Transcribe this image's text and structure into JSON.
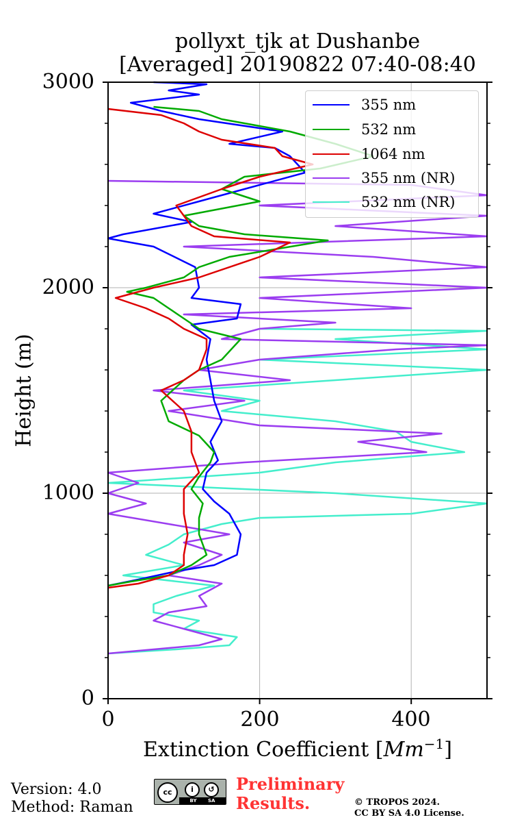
{
  "chart_data": {
    "type": "line",
    "title": [
      "pollyxt_tjk at Dushanbe",
      "[Averaged] 20190822 07:40-08:40"
    ],
    "xlabel": "Extinction Coefficient [",
    "xlabel_unit": "Mm",
    "xlabel_exp": "−1",
    "xlabel_close": "]",
    "ylabel": "Height (m)",
    "xlim": [
      0,
      500
    ],
    "ylim": [
      0,
      3000
    ],
    "x_ticks": [
      "0",
      "200",
      "400"
    ],
    "y_ticks": [
      "0",
      "1000",
      "2000",
      "3000"
    ],
    "grid": true,
    "legend_position": "top-right",
    "series": [
      {
        "name": "355 nm",
        "color": "#0000ff",
        "points": [
          [
            0,
            550
          ],
          [
            40,
            580
          ],
          [
            90,
            620
          ],
          [
            140,
            650
          ],
          [
            170,
            700
          ],
          [
            175,
            800
          ],
          [
            160,
            900
          ],
          [
            140,
            960
          ],
          [
            125,
            1020
          ],
          [
            130,
            1100
          ],
          [
            145,
            1160
          ],
          [
            135,
            1250
          ],
          [
            150,
            1350
          ],
          [
            140,
            1450
          ],
          [
            135,
            1550
          ],
          [
            130,
            1650
          ],
          [
            135,
            1750
          ],
          [
            110,
            1820
          ],
          [
            170,
            1850
          ],
          [
            175,
            1920
          ],
          [
            110,
            1950
          ],
          [
            120,
            2000
          ],
          [
            115,
            2100
          ],
          [
            60,
            2200
          ],
          [
            0,
            2240
          ],
          [
            20,
            2260
          ],
          [
            110,
            2320
          ],
          [
            60,
            2360
          ],
          [
            120,
            2420
          ],
          [
            180,
            2480
          ],
          [
            260,
            2560
          ],
          [
            240,
            2640
          ],
          [
            220,
            2680
          ],
          [
            160,
            2700
          ],
          [
            230,
            2760
          ],
          [
            120,
            2820
          ],
          [
            70,
            2860
          ],
          [
            30,
            2900
          ],
          [
            120,
            2940
          ],
          [
            80,
            2960
          ],
          [
            130,
            2990
          ],
          [
            60,
            3000
          ]
        ]
      },
      {
        "name": "532 nm",
        "color": "#00aa00",
        "points": [
          [
            0,
            550
          ],
          [
            30,
            570
          ],
          [
            80,
            600
          ],
          [
            110,
            650
          ],
          [
            130,
            700
          ],
          [
            120,
            800
          ],
          [
            120,
            880
          ],
          [
            125,
            950
          ],
          [
            110,
            1020
          ],
          [
            120,
            1080
          ],
          [
            135,
            1150
          ],
          [
            140,
            1200
          ],
          [
            120,
            1280
          ],
          [
            80,
            1350
          ],
          [
            70,
            1450
          ],
          [
            100,
            1550
          ],
          [
            120,
            1600
          ],
          [
            150,
            1650
          ],
          [
            175,
            1750
          ],
          [
            120,
            1800
          ],
          [
            100,
            1850
          ],
          [
            80,
            1900
          ],
          [
            60,
            1950
          ],
          [
            25,
            1980
          ],
          [
            50,
            2000
          ],
          [
            100,
            2050
          ],
          [
            120,
            2100
          ],
          [
            160,
            2150
          ],
          [
            290,
            2230
          ],
          [
            180,
            2260
          ],
          [
            120,
            2300
          ],
          [
            100,
            2350
          ],
          [
            200,
            2420
          ],
          [
            150,
            2480
          ],
          [
            180,
            2540
          ],
          [
            280,
            2580
          ],
          [
            350,
            2640
          ],
          [
            300,
            2700
          ],
          [
            240,
            2760
          ],
          [
            150,
            2820
          ],
          [
            120,
            2860
          ],
          [
            60,
            2880
          ]
        ]
      },
      {
        "name": "1064 nm",
        "color": "#dd0000",
        "points": [
          [
            0,
            540
          ],
          [
            40,
            560
          ],
          [
            80,
            600
          ],
          [
            100,
            650
          ],
          [
            100,
            700
          ],
          [
            105,
            800
          ],
          [
            100,
            900
          ],
          [
            100,
            950
          ],
          [
            100,
            1020
          ],
          [
            120,
            1100
          ],
          [
            110,
            1200
          ],
          [
            110,
            1300
          ],
          [
            100,
            1400
          ],
          [
            70,
            1500
          ],
          [
            100,
            1550
          ],
          [
            120,
            1600
          ],
          [
            130,
            1700
          ],
          [
            130,
            1750
          ],
          [
            100,
            1800
          ],
          [
            80,
            1850
          ],
          [
            50,
            1900
          ],
          [
            10,
            1950
          ],
          [
            60,
            2000
          ],
          [
            120,
            2050
          ],
          [
            200,
            2150
          ],
          [
            240,
            2220
          ],
          [
            140,
            2250
          ],
          [
            110,
            2300
          ],
          [
            90,
            2400
          ],
          [
            150,
            2480
          ],
          [
            200,
            2540
          ],
          [
            270,
            2600
          ],
          [
            230,
            2640
          ],
          [
            220,
            2680
          ],
          [
            150,
            2720
          ],
          [
            120,
            2760
          ],
          [
            100,
            2800
          ],
          [
            70,
            2840
          ],
          [
            0,
            2870
          ]
        ]
      },
      {
        "name": "355 nm (NR)",
        "color": "#9b3df0",
        "points": [
          [
            0,
            220
          ],
          [
            60,
            240
          ],
          [
            120,
            260
          ],
          [
            150,
            290
          ],
          [
            100,
            340
          ],
          [
            60,
            380
          ],
          [
            80,
            420
          ],
          [
            130,
            450
          ],
          [
            120,
            500
          ],
          [
            150,
            560
          ],
          [
            80,
            600
          ],
          [
            120,
            650
          ],
          [
            150,
            700
          ],
          [
            100,
            760
          ],
          [
            160,
            800
          ],
          [
            80,
            850
          ],
          [
            0,
            900
          ],
          [
            50,
            950
          ],
          [
            0,
            1000
          ],
          [
            40,
            1050
          ],
          [
            0,
            1100
          ],
          [
            180,
            1150
          ],
          [
            420,
            1200
          ],
          [
            330,
            1250
          ],
          [
            440,
            1290
          ],
          [
            200,
            1330
          ],
          [
            80,
            1400
          ],
          [
            180,
            1450
          ],
          [
            60,
            1500
          ],
          [
            240,
            1550
          ],
          [
            120,
            1600
          ],
          [
            200,
            1650
          ],
          [
            380,
            1700
          ],
          [
            500,
            1720
          ],
          [
            150,
            1750
          ],
          [
            200,
            1800
          ],
          [
            300,
            1830
          ],
          [
            100,
            1870
          ],
          [
            400,
            1900
          ],
          [
            200,
            1950
          ],
          [
            500,
            2000
          ],
          [
            200,
            2050
          ],
          [
            500,
            2100
          ],
          [
            350,
            2150
          ],
          [
            100,
            2200
          ],
          [
            500,
            2250
          ],
          [
            300,
            2300
          ],
          [
            500,
            2350
          ],
          [
            200,
            2400
          ],
          [
            500,
            2450
          ],
          [
            400,
            2500
          ],
          [
            0,
            2520
          ]
        ]
      },
      {
        "name": "532 nm (NR)",
        "color": "#44eecc",
        "points": [
          [
            0,
            220
          ],
          [
            90,
            240
          ],
          [
            160,
            260
          ],
          [
            170,
            300
          ],
          [
            100,
            340
          ],
          [
            120,
            380
          ],
          [
            60,
            420
          ],
          [
            60,
            460
          ],
          [
            90,
            500
          ],
          [
            140,
            550
          ],
          [
            20,
            600
          ],
          [
            100,
            650
          ],
          [
            50,
            700
          ],
          [
            80,
            750
          ],
          [
            100,
            800
          ],
          [
            150,
            850
          ],
          [
            200,
            880
          ],
          [
            400,
            900
          ],
          [
            500,
            950
          ],
          [
            300,
            1000
          ],
          [
            0,
            1050
          ],
          [
            200,
            1100
          ],
          [
            300,
            1150
          ],
          [
            470,
            1200
          ],
          [
            400,
            1250
          ],
          [
            380,
            1300
          ],
          [
            300,
            1350
          ],
          [
            150,
            1400
          ],
          [
            200,
            1450
          ],
          [
            100,
            1500
          ],
          [
            300,
            1550
          ],
          [
            500,
            1600
          ],
          [
            200,
            1650
          ],
          [
            500,
            1700
          ],
          [
            300,
            1750
          ],
          [
            500,
            1790
          ],
          [
            200,
            1800
          ]
        ]
      }
    ]
  },
  "footer": {
    "version": "Version: 4.0",
    "method": "Method: Raman",
    "preliminary_line1": "Preliminary",
    "preliminary_line2": "Results.",
    "copyright_line1": "© TROPOS 2024.",
    "copyright_line2": "CC BY SA 4.0 License.",
    "license_badge": {
      "cc": "cc",
      "strip": "BY SA"
    }
  }
}
